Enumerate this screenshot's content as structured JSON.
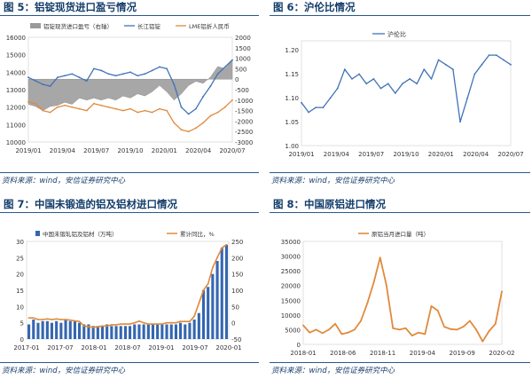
{
  "panels": [
    {
      "title": "图 5：铝锭现货进口盈亏情况",
      "source": "资料来源：wind，安信证券研究中心"
    },
    {
      "title": "图 6：沪伦比情况",
      "source": "资料来源：wind，安信证券研究中心"
    },
    {
      "title": "图 7：中国未锻造的铝及铝材进口情况",
      "source": "资料来源：wind，安信证券研究中心"
    },
    {
      "title": "图 8：中国原铝进口情况",
      "source": "资料来源：wind，安信证券研究中心"
    }
  ],
  "chart_data": [
    {
      "type": "line",
      "legend": [
        "铝锭现货进口盈亏（右轴）",
        "长江铝锭",
        "LME铝折人民币"
      ],
      "y_ticks": [
        "16000",
        "15000",
        "14000",
        "13000",
        "12000",
        "11000",
        "10000"
      ],
      "y2_ticks": [
        "2000",
        "1500",
        "1000",
        "500",
        "0",
        "-500",
        "-1000",
        "-1500",
        "-2000",
        "-2500",
        "-3000"
      ],
      "x_ticks": [
        "2019/01",
        "2019/04",
        "2019/07",
        "2019/10",
        "2020/01",
        "2020/04",
        "2020/07"
      ],
      "ylim": [
        10000,
        16000
      ],
      "y2lim": [
        -3000,
        2000
      ],
      "series": [
        {
          "name": "长江铝锭",
          "color": "#3f72b8",
          "axis": "left",
          "values": [
            13700,
            13500,
            13300,
            13200,
            13700,
            13800,
            13900,
            13700,
            13500,
            14200,
            14100,
            13900,
            13800,
            13900,
            14000,
            13800,
            13900,
            14100,
            14300,
            14200,
            13300,
            12000,
            11600,
            11900,
            12600,
            13200,
            13900,
            14300,
            14700
          ]
        },
        {
          "name": "LME铝折人民币",
          "color": "#e08a3c",
          "axis": "left",
          "values": [
            12300,
            12200,
            11800,
            11700,
            12000,
            12100,
            12000,
            11900,
            11800,
            12200,
            12100,
            12000,
            11900,
            11800,
            11900,
            11700,
            11800,
            11700,
            11900,
            11800,
            11100,
            10700,
            10600,
            10800,
            11100,
            11500,
            11700,
            12000,
            12400
          ]
        },
        {
          "name": "铝锭现货进口盈亏（右轴）",
          "color": "#9a9a9a",
          "axis": "right",
          "style": "area",
          "values": [
            -1200,
            -1300,
            -1500,
            -1300,
            -1250,
            -1100,
            -1200,
            -900,
            -1000,
            -900,
            -1000,
            -900,
            -1000,
            -800,
            -900,
            -700,
            -800,
            -600,
            -300,
            -600,
            -1000,
            -700,
            -300,
            -100,
            -200,
            100,
            600,
            500,
            900
          ]
        }
      ]
    },
    {
      "type": "line",
      "legend": [
        "沪伦比"
      ],
      "y_ticks": [
        "1.20",
        "1.15",
        "1.10",
        "1.05",
        "1.00"
      ],
      "x_ticks": [
        "2019/01",
        "2019/04",
        "2019/07",
        "2019/10",
        "2020/01",
        "2020/04",
        "2020/07"
      ],
      "ylim": [
        1.0,
        1.22
      ],
      "series": [
        {
          "name": "沪伦比",
          "color": "#3f72b8",
          "values": [
            1.09,
            1.07,
            1.08,
            1.08,
            1.1,
            1.12,
            1.16,
            1.14,
            1.15,
            1.13,
            1.14,
            1.12,
            1.13,
            1.11,
            1.13,
            1.14,
            1.13,
            1.16,
            1.14,
            1.18,
            1.17,
            1.16,
            1.05,
            1.1,
            1.15,
            1.17,
            1.19,
            1.19,
            1.18,
            1.17
          ]
        }
      ]
    },
    {
      "type": "bar",
      "legend": [
        "中国未锻轧铝及铝材（万吨）",
        "累计同比，%"
      ],
      "y_ticks": [
        "30",
        "25",
        "20",
        "15",
        "10",
        "5",
        "0"
      ],
      "y2_ticks": [
        "250",
        "200",
        "150",
        "100",
        "50",
        "0",
        "-50"
      ],
      "x_ticks": [
        "2017-01",
        "2017-07",
        "2018-01",
        "2018-07",
        "2019-01",
        "2019-07",
        "2020-01"
      ],
      "ylim": [
        0,
        30
      ],
      "y2lim": [
        -50,
        250
      ],
      "series": [
        {
          "name": "中国未锻轧铝及铝材（万吨）",
          "color": "#3566b0",
          "axis": "left",
          "values": [
            4.5,
            6,
            5,
            5.5,
            5.5,
            5,
            5.5,
            5,
            6,
            5.5,
            5.5,
            5,
            4.5,
            4.5,
            4,
            4,
            4,
            4.5,
            4,
            4,
            4,
            4,
            4,
            4.5,
            4.5,
            4.5,
            4.5,
            4.5,
            4.5,
            4.5,
            4.5,
            4.5,
            4.5,
            5,
            4.5,
            5,
            6,
            8,
            15,
            16,
            20,
            24,
            28,
            29
          ]
        },
        {
          "name": "累计同比，%",
          "color": "#e08a3c",
          "axis": "right",
          "values": [
            15,
            15,
            10,
            10,
            12,
            10,
            12,
            10,
            10,
            8,
            6,
            4,
            -10,
            -12,
            -14,
            -12,
            -10,
            -10,
            -6,
            -6,
            -4,
            -4,
            -4,
            0,
            5,
            0,
            -4,
            -4,
            -4,
            -4,
            0,
            0,
            0,
            4,
            4,
            4,
            20,
            60,
            100,
            120,
            170,
            200,
            230,
            240
          ]
        }
      ]
    },
    {
      "type": "line",
      "legend": [
        "原铝当月进口量（吨）"
      ],
      "y_ticks": [
        "35000",
        "30000",
        "25000",
        "20000",
        "15000",
        "10000",
        "5000",
        "0"
      ],
      "x_ticks": [
        "2018-01",
        "2018-06",
        "2018-11",
        "2019-04",
        "2019-09",
        "2020-02"
      ],
      "ylim": [
        0,
        35000
      ],
      "series": [
        {
          "name": "原铝当月进口量（吨）",
          "color": "#e08a3c",
          "values": [
            6500,
            4000,
            5000,
            3800,
            5000,
            7000,
            3500,
            4000,
            5000,
            8000,
            14000,
            21000,
            29500,
            20000,
            5500,
            5000,
            5500,
            3000,
            4000,
            3500,
            13000,
            11500,
            6000,
            5200,
            5000,
            6000,
            8000,
            5000,
            1000,
            4500,
            7000,
            18000
          ]
        }
      ]
    }
  ]
}
